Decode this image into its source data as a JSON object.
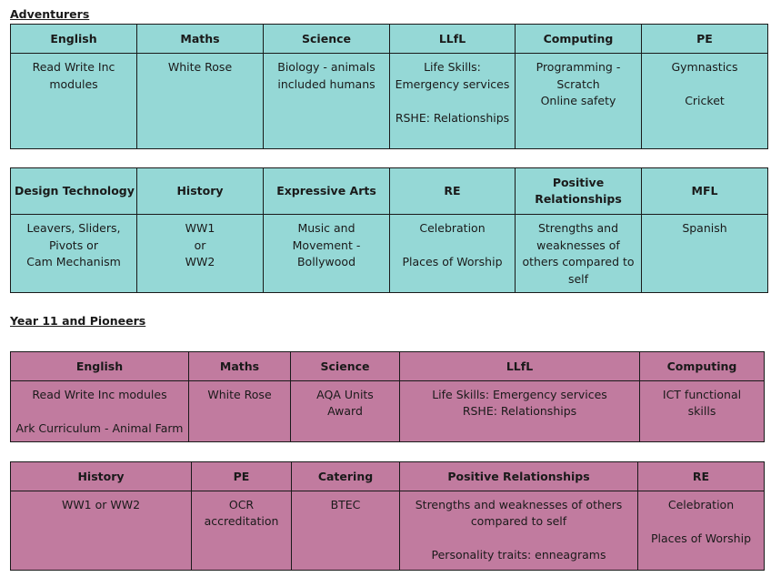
{
  "colors": {
    "adventurers_fill": "#95d8d6",
    "pioneers_fill": "#c17b9f",
    "border": "#1a1a1a"
  },
  "sections": [
    {
      "heading": "Adventurers",
      "tables": [
        {
          "headers": [
            [
              "English"
            ],
            [
              "Maths"
            ],
            [
              "Science"
            ],
            [
              "LLfL"
            ],
            [
              "Computing"
            ],
            [
              "PE"
            ]
          ],
          "cells": [
            [
              "Read Write Inc",
              "modules"
            ],
            [
              "White Rose"
            ],
            [
              "Biology - animals",
              "included humans"
            ],
            [
              "Life Skills:",
              "Emergency services",
              "",
              "RSHE: Relationships"
            ],
            [
              "Programming -",
              "Scratch",
              "Online safety"
            ],
            [
              "Gymnastics",
              "",
              "Cricket"
            ]
          ]
        },
        {
          "headers": [
            [
              "Design Technology"
            ],
            [
              "History"
            ],
            [
              "Expressive Arts"
            ],
            [
              "RE"
            ],
            [
              "Positive",
              "Relationships"
            ],
            [
              "MFL"
            ]
          ],
          "cells": [
            [
              "Leavers, Sliders,",
              "Pivots or",
              "Cam Mechanism"
            ],
            [
              "WW1",
              "or",
              "WW2"
            ],
            [
              "Music and",
              "Movement -",
              "Bollywood"
            ],
            [
              "Celebration",
              "",
              "Places of Worship"
            ],
            [
              "Strengths and",
              "weaknesses of",
              "others compared to",
              "self"
            ],
            [
              "Spanish"
            ]
          ]
        }
      ]
    },
    {
      "heading": "Year 11 and Pioneers",
      "tables": [
        {
          "headers": [
            [
              "English"
            ],
            [
              "Maths"
            ],
            [
              "Science"
            ],
            [
              "LLfL"
            ],
            [
              "Computing"
            ]
          ],
          "cells": [
            [
              "Read Write Inc modules",
              "",
              "Ark Curriculum - Animal Farm"
            ],
            [
              "White Rose"
            ],
            [
              "AQA Units",
              "Award"
            ],
            [
              "Life Skills: Emergency services",
              "RSHE: Relationships"
            ],
            [
              "ICT functional",
              "skills"
            ]
          ]
        },
        {
          "headers": [
            [
              "History"
            ],
            [
              "PE"
            ],
            [
              "Catering"
            ],
            [
              "Positive Relationships"
            ],
            [
              "RE"
            ]
          ],
          "cells": [
            [
              "WW1 or WW2"
            ],
            [
              "OCR",
              "accreditation"
            ],
            [
              "BTEC"
            ],
            [
              "Strengths and weaknesses of others",
              "compared to self",
              "",
              "Personality traits: enneagrams"
            ],
            [
              "Celebration",
              "",
              "Places of Worship"
            ]
          ]
        }
      ]
    }
  ]
}
